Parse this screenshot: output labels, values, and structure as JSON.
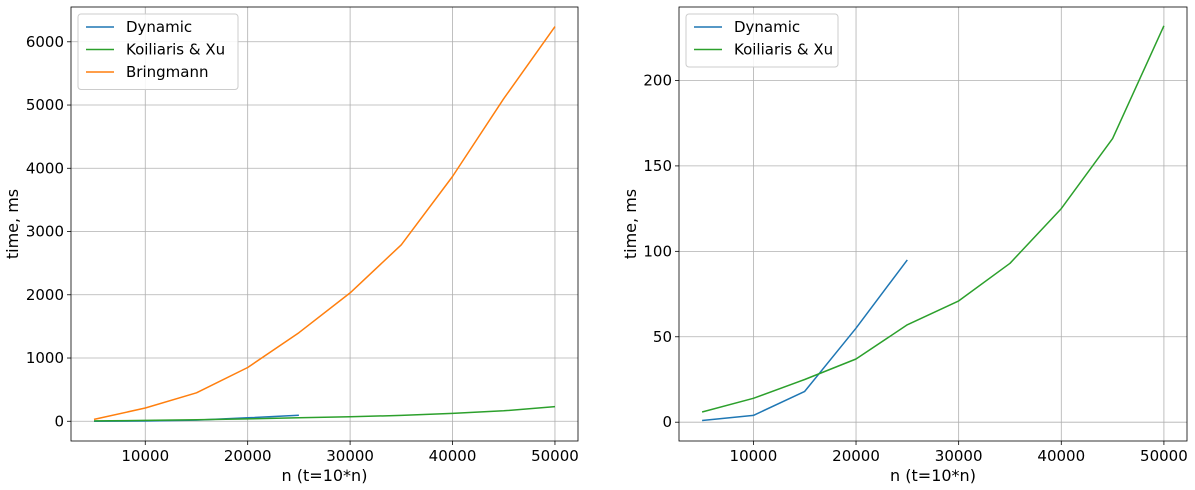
{
  "chart_data": [
    {
      "type": "line",
      "xlabel": "n (t=10*n)",
      "ylabel": "time, ms",
      "xlim": [
        2750,
        52250
      ],
      "ylim": [
        -312,
        6550
      ],
      "xticks": [
        10000,
        20000,
        30000,
        40000,
        50000
      ],
      "yticks": [
        0,
        1000,
        2000,
        3000,
        4000,
        5000,
        6000
      ],
      "grid": true,
      "legend_position": "top-left",
      "series": [
        {
          "name": "Dynamic",
          "color": "#1f77b4",
          "x": [
            5000,
            10000,
            15000,
            20000,
            25000
          ],
          "y": [
            1,
            4,
            18,
            55,
            95
          ]
        },
        {
          "name": "Koiliaris & Xu",
          "color": "#2ca02c",
          "x": [
            5000,
            10000,
            15000,
            20000,
            25000,
            30000,
            35000,
            40000,
            45000,
            50000
          ],
          "y": [
            6,
            14,
            25,
            37,
            57,
            71,
            93,
            125,
            166,
            232
          ]
        },
        {
          "name": "Bringmann",
          "color": "#ff7f0e",
          "x": [
            5000,
            10000,
            15000,
            20000,
            25000,
            30000,
            35000,
            40000,
            45000,
            50000
          ],
          "y": [
            30,
            210,
            450,
            850,
            1400,
            2030,
            2790,
            3870,
            5100,
            6240
          ]
        }
      ]
    },
    {
      "type": "line",
      "xlabel": "n (t=10*n)",
      "ylabel": "time, ms",
      "xlim": [
        2750,
        52250
      ],
      "ylim": [
        -11,
        243
      ],
      "xticks": [
        10000,
        20000,
        30000,
        40000,
        50000
      ],
      "yticks": [
        0,
        50,
        100,
        150,
        200
      ],
      "grid": true,
      "legend_position": "top-left",
      "series": [
        {
          "name": "Dynamic",
          "color": "#1f77b4",
          "x": [
            5000,
            10000,
            15000,
            20000,
            25000
          ],
          "y": [
            1,
            4,
            18,
            55,
            95
          ]
        },
        {
          "name": "Koiliaris & Xu",
          "color": "#2ca02c",
          "x": [
            5000,
            10000,
            15000,
            20000,
            25000,
            30000,
            35000,
            40000,
            45000,
            50000
          ],
          "y": [
            6,
            14,
            25,
            37,
            57,
            71,
            93,
            125,
            166,
            232
          ]
        }
      ]
    }
  ]
}
